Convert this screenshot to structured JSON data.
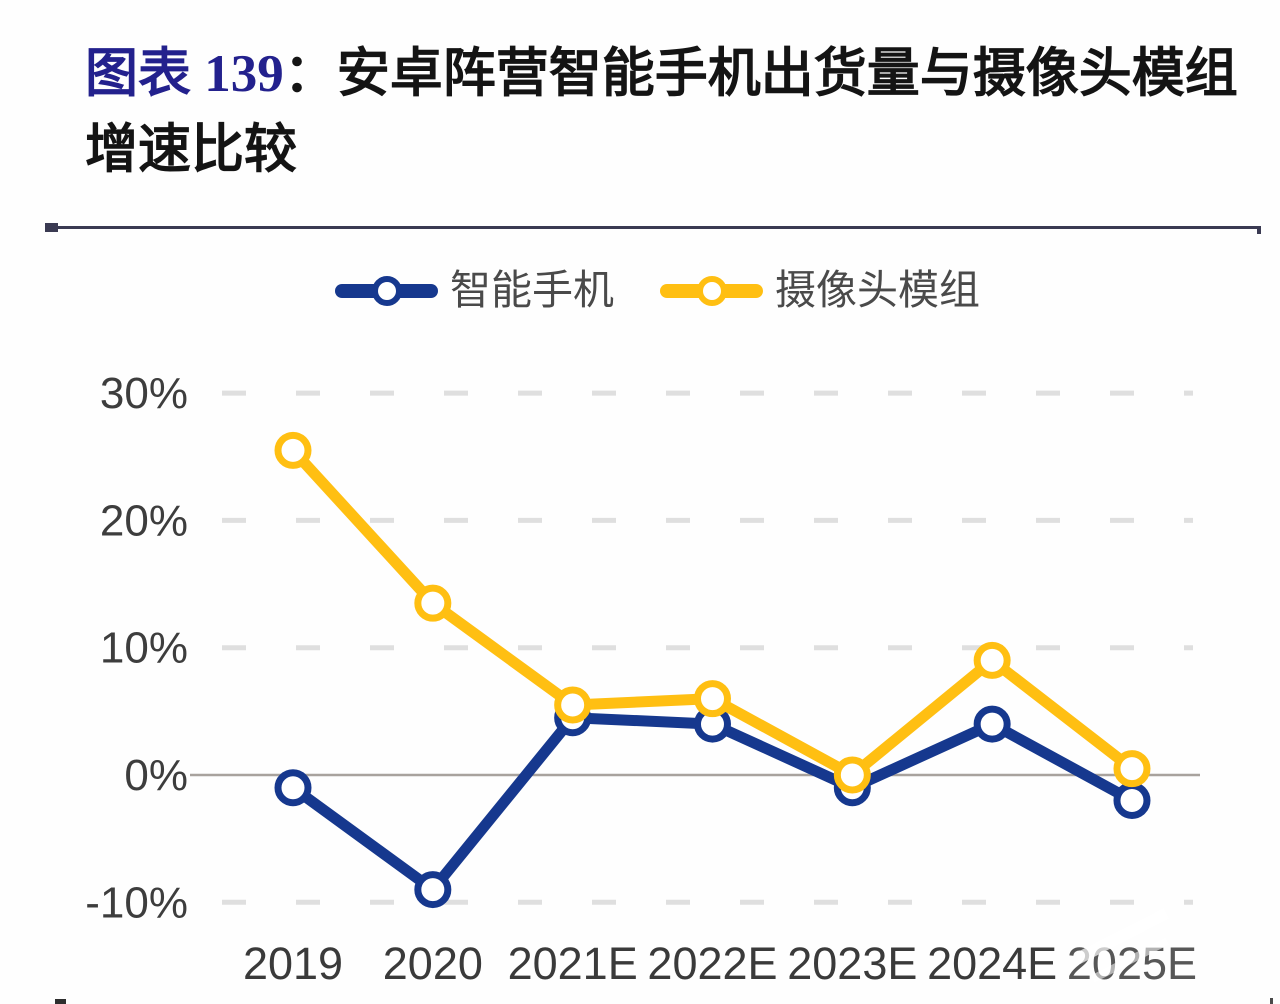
{
  "page": {
    "background": "#ffffff"
  },
  "title": {
    "number": "图表 139",
    "colon": "：",
    "line1": "安卓阵营智能手机出货量与摄像头模组",
    "line2": "增速比较",
    "accent_color": "#23218D",
    "text_color": "#141414"
  },
  "divider": {
    "color": "#3A3A52"
  },
  "legend": [
    {
      "label": "智能手机",
      "color": "#16388E",
      "marker": "open-circle"
    },
    {
      "label": "摄像头模组",
      "color": "#FFBF12",
      "marker": "open-circle"
    }
  ],
  "chart_data": {
    "type": "line",
    "title": "安卓阵营智能手机出货量与摄像头模组增速比较",
    "categories": [
      "2019",
      "2020",
      "2021E",
      "2022E",
      "2023E",
      "2024E",
      "2025E"
    ],
    "series": [
      {
        "name": "智能手机",
        "color": "#16388E",
        "marker": "open-circle",
        "values": [
          -1,
          -9,
          4.5,
          4,
          -1,
          4,
          -2
        ]
      },
      {
        "name": "摄像头模组",
        "color": "#FFBF12",
        "marker": "open-circle",
        "values": [
          25.5,
          13.5,
          5.5,
          6,
          0,
          9,
          0.5
        ]
      }
    ],
    "unit": "%",
    "xlabel": "",
    "ylabel": "",
    "y_ticks": [
      "30%",
      "20%",
      "10%",
      "0%",
      "-10%"
    ],
    "y_tick_values": [
      30,
      20,
      10,
      0,
      -10
    ],
    "ylim": [
      -13,
      33
    ],
    "grid": "dashed-horizontal",
    "zero_line": "solid",
    "legend_position": "top-center"
  },
  "axis_style": {
    "tick_color": "#3D3D3D",
    "gridline_color": "#C2C2C2",
    "zero_line_color": "#A8A29D"
  }
}
